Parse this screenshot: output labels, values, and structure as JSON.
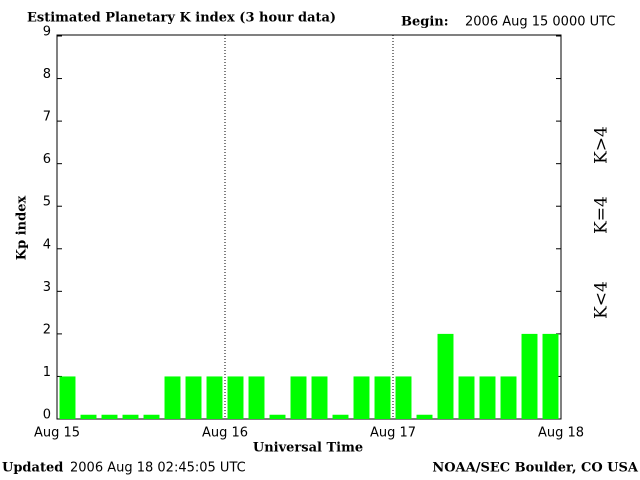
{
  "chart_data": {
    "type": "bar",
    "title": "Estimated Planetary K index (3 hour data)",
    "begin_label": "Begin:",
    "begin_value": "2006 Aug 15 0000 UTC",
    "ylabel": "Kp index",
    "xlabel": "Universal Time",
    "day_labels": [
      "Aug 15",
      "Aug 16",
      "Aug 17",
      "Aug 18"
    ],
    "categories": [
      null,
      null,
      null,
      null,
      null,
      null,
      null,
      null,
      null,
      null,
      null,
      null,
      null,
      null,
      null,
      null,
      null,
      null,
      null,
      null,
      null,
      null,
      null,
      null
    ],
    "values": [
      1,
      0.1,
      0.1,
      0.1,
      0.1,
      1,
      1,
      1,
      1,
      1,
      0.1,
      1,
      1,
      0.1,
      1,
      1,
      1,
      0.1,
      2,
      1,
      1,
      1,
      2,
      2
    ],
    "color": "#00ff00",
    "ylim": [
      0,
      9
    ],
    "yticks": [
      0,
      1,
      2,
      3,
      4,
      5,
      6,
      7,
      8,
      9
    ],
    "legend": [
      {
        "name": "K<4",
        "color": "#00ff00"
      },
      {
        "name": "K=4",
        "color": "#ffd700"
      },
      {
        "name": "K>4",
        "color": "#ff2000"
      }
    ],
    "updated_label": "Updated",
    "updated_value": "2006 Aug 18 02:45:05 UTC",
    "source": "NOAA/SEC Boulder, CO USA"
  }
}
